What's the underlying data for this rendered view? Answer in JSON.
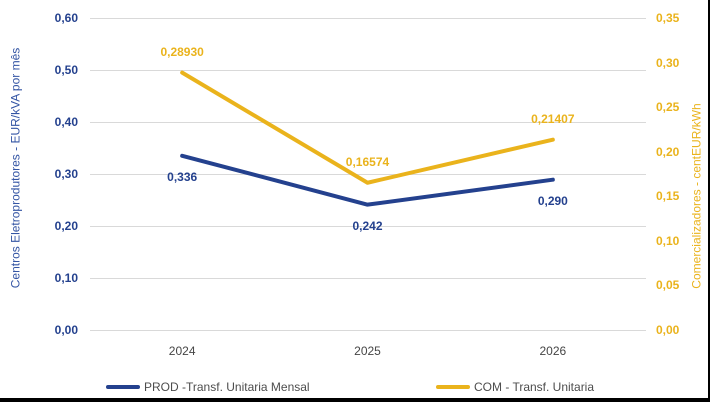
{
  "chart_data": {
    "type": "line",
    "categories": [
      "2024",
      "2025",
      "2026"
    ],
    "series": [
      {
        "name": "PROD -Transf. Unitaria Mensal",
        "axis": "left",
        "color": "#24418E",
        "values": [
          0.336,
          0.242,
          0.29
        ],
        "point_labels": [
          "0,336",
          "0,242",
          "0,290"
        ],
        "label_side": "below"
      },
      {
        "name": "COM - Transf. Unitaria",
        "axis": "right",
        "color": "#EAB31C",
        "values": [
          0.2893,
          0.16574,
          0.21407
        ],
        "point_labels": [
          "0,28930",
          "0,16574",
          "0,21407"
        ],
        "label_side": "above"
      }
    ],
    "left_axis": {
      "title": "Centros Eletroprodutores - EUR/kVA por mês",
      "ticks": [
        "0,60",
        "0,50",
        "0,40",
        "0,30",
        "0,20",
        "0,10",
        "0,00"
      ],
      "min": 0,
      "max": 0.6
    },
    "right_axis": {
      "title": "Comercializadores - centEUR/kWh",
      "ticks": [
        "0,35",
        "0,30",
        "0,25",
        "0,20",
        "0,15",
        "0,10",
        "0,05",
        "0,00"
      ],
      "min": 0,
      "max": 0.35
    },
    "grid": true,
    "gridline_color": "#D9D9D9",
    "x_label_color": "#454545",
    "legend_text_color": "#4d4d4d",
    "legend_position": "bottom",
    "title": ""
  }
}
